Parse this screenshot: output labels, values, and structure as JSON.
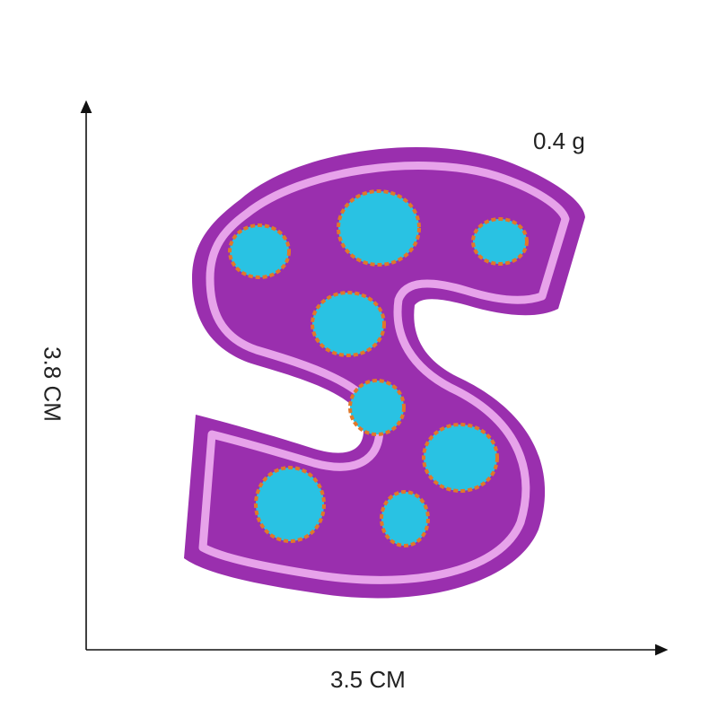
{
  "product": {
    "weight_label": "0.4 g",
    "width_label": "3.5 CM",
    "height_label": "3.8 CM"
  },
  "patch": {
    "letter_shape": "S",
    "colors": {
      "felt": "#9a2fae",
      "border_stitch": "#e7a3ea",
      "dots": "#29c2e3",
      "dot_outline": "#e0782a"
    }
  },
  "axis_color": "#111111"
}
